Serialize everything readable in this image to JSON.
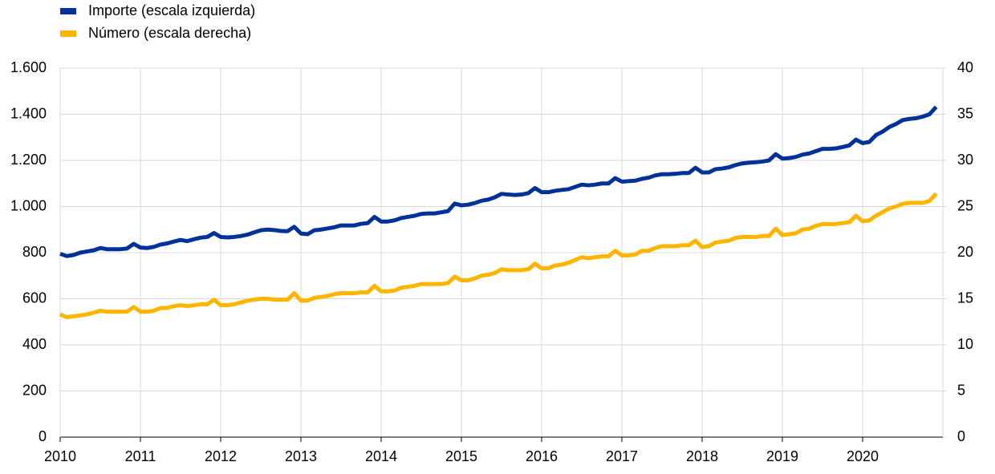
{
  "chart_data": {
    "type": "line",
    "categories": [
      "2010",
      null,
      null,
      null,
      null,
      null,
      null,
      null,
      null,
      null,
      null,
      null,
      "2011",
      null,
      null,
      null,
      null,
      null,
      null,
      null,
      null,
      null,
      null,
      null,
      "2012",
      null,
      null,
      null,
      null,
      null,
      null,
      null,
      null,
      null,
      null,
      null,
      "2013",
      null,
      null,
      null,
      null,
      null,
      null,
      null,
      null,
      null,
      null,
      null,
      "2014",
      null,
      null,
      null,
      null,
      null,
      null,
      null,
      null,
      null,
      null,
      null,
      "2015",
      null,
      null,
      null,
      null,
      null,
      null,
      null,
      null,
      null,
      null,
      null,
      "2016",
      null,
      null,
      null,
      null,
      null,
      null,
      null,
      null,
      null,
      null,
      null,
      "2017",
      null,
      null,
      null,
      null,
      null,
      null,
      null,
      null,
      null,
      null,
      null,
      "2018",
      null,
      null,
      null,
      null,
      null,
      null,
      null,
      null,
      null,
      null,
      null,
      "2019",
      null,
      null,
      null,
      null,
      null,
      null,
      null,
      null,
      null,
      null,
      null,
      "2020",
      null,
      null,
      null,
      null,
      null,
      null,
      null,
      null,
      null,
      null,
      null
    ],
    "series": [
      {
        "name": "Importe (escala izquierda)",
        "color": "#003299",
        "axis": "y",
        "values": [
          795,
          785,
          790,
          800,
          805,
          810,
          820,
          815,
          815,
          815,
          818,
          838,
          822,
          820,
          825,
          835,
          840,
          848,
          855,
          850,
          858,
          865,
          868,
          885,
          868,
          866,
          868,
          872,
          878,
          888,
          897,
          900,
          898,
          894,
          893,
          912,
          883,
          880,
          897,
          900,
          905,
          910,
          918,
          918,
          918,
          925,
          928,
          955,
          935,
          935,
          940,
          950,
          955,
          960,
          968,
          970,
          970,
          975,
          980,
          1013,
          1005,
          1008,
          1015,
          1025,
          1030,
          1040,
          1055,
          1052,
          1050,
          1052,
          1058,
          1080,
          1062,
          1062,
          1068,
          1072,
          1075,
          1085,
          1095,
          1092,
          1095,
          1100,
          1100,
          1123,
          1108,
          1110,
          1112,
          1120,
          1125,
          1135,
          1140,
          1140,
          1142,
          1145,
          1145,
          1168,
          1148,
          1148,
          1162,
          1165,
          1170,
          1180,
          1187,
          1190,
          1192,
          1195,
          1200,
          1227,
          1208,
          1210,
          1215,
          1225,
          1230,
          1240,
          1250,
          1250,
          1252,
          1258,
          1265,
          1290,
          1275,
          1280,
          1310,
          1325,
          1345,
          1358,
          1375,
          1380,
          1383,
          1390,
          1400,
          1432
        ]
      },
      {
        "name": "Número (escala derecha)",
        "color": "#ffb400",
        "axis": "y2",
        "values": [
          13.3,
          13.0,
          13.1,
          13.2,
          13.3,
          13.5,
          13.7,
          13.6,
          13.6,
          13.6,
          13.6,
          14.1,
          13.6,
          13.6,
          13.7,
          14.0,
          14.0,
          14.2,
          14.3,
          14.2,
          14.3,
          14.4,
          14.4,
          14.9,
          14.3,
          14.3,
          14.4,
          14.6,
          14.8,
          14.9,
          15.0,
          15.0,
          14.9,
          14.9,
          14.9,
          15.6,
          14.8,
          14.8,
          15.1,
          15.2,
          15.3,
          15.5,
          15.6,
          15.6,
          15.6,
          15.7,
          15.7,
          16.4,
          15.8,
          15.8,
          15.9,
          16.2,
          16.3,
          16.4,
          16.6,
          16.6,
          16.6,
          16.6,
          16.7,
          17.4,
          17.0,
          17.0,
          17.2,
          17.5,
          17.6,
          17.8,
          18.2,
          18.1,
          18.1,
          18.1,
          18.2,
          18.8,
          18.3,
          18.3,
          18.6,
          18.7,
          18.9,
          19.2,
          19.5,
          19.4,
          19.5,
          19.6,
          19.6,
          20.2,
          19.7,
          19.7,
          19.8,
          20.2,
          20.2,
          20.5,
          20.7,
          20.7,
          20.7,
          20.8,
          20.8,
          21.3,
          20.6,
          20.7,
          21.1,
          21.2,
          21.3,
          21.6,
          21.7,
          21.7,
          21.7,
          21.8,
          21.8,
          22.6,
          21.9,
          22.0,
          22.1,
          22.5,
          22.6,
          22.9,
          23.1,
          23.1,
          23.1,
          23.2,
          23.3,
          24.0,
          23.4,
          23.5,
          24.0,
          24.4,
          24.8,
          25.0,
          25.3,
          25.4,
          25.4,
          25.4,
          25.6,
          26.4
        ]
      }
    ],
    "ylim": [
      0,
      1600
    ],
    "yticks": [
      0,
      200,
      400,
      600,
      800,
      {
        "value": 1000,
        "label": "1.000"
      },
      {
        "value": 1200,
        "label": "1.200"
      },
      {
        "value": 1400,
        "label": "1.400"
      },
      {
        "value": 1600,
        "label": "1.600"
      }
    ],
    "y2lim": [
      0,
      40
    ],
    "y2ticks": [
      0,
      5,
      10,
      15,
      20,
      25,
      30,
      35,
      40
    ],
    "grid": true,
    "legend": "top-left"
  }
}
